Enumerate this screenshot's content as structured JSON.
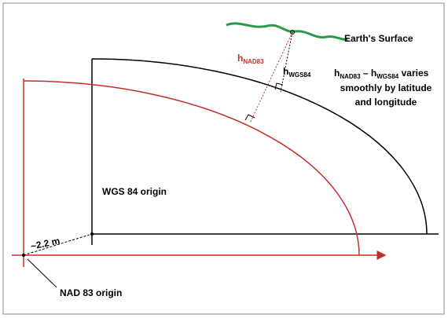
{
  "labels": {
    "earth_surface": "Earth's Surface",
    "h_nad83": {
      "base": "h",
      "sub": "NAD83"
    },
    "h_wgs84": {
      "base": "h",
      "sub": "WGS84"
    },
    "note": {
      "line1": {
        "base1": "h",
        "sub1": "NAD83",
        "mid": " – h",
        "sub2": "WGS84",
        "end": " varies"
      },
      "line2": "smoothly by latitude",
      "line3": "and longitude"
    },
    "wgs84_origin": "WGS 84 origin",
    "offset": "~2.2 m",
    "nad83_origin": "NAD 83 origin"
  }
}
